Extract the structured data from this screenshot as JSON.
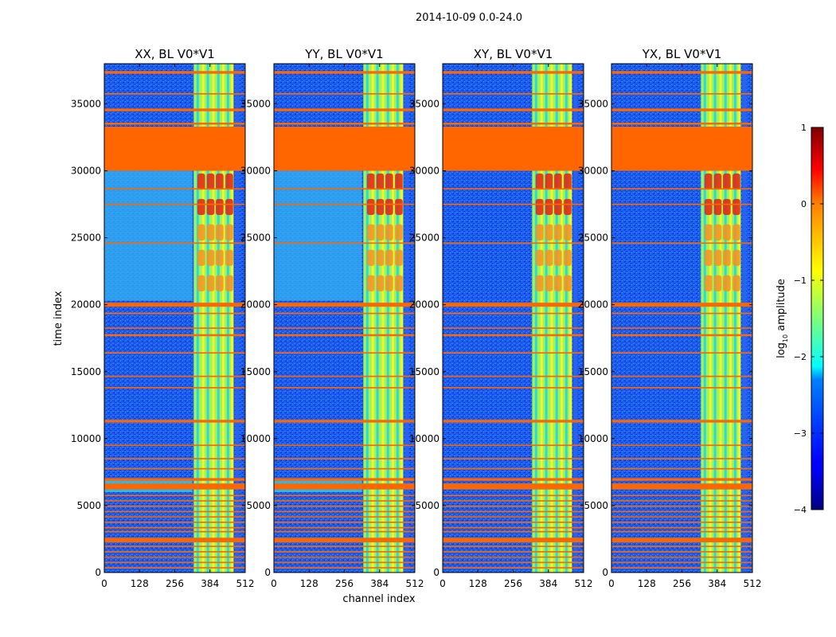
{
  "chart_data": {
    "type": "heatmap",
    "suptitle": "2014-10-09 0.0-24.0",
    "xlabel": "channel index",
    "ylabel": "time index",
    "xlim": [
      0,
      512
    ],
    "ylim": [
      0,
      38000
    ],
    "xticks": [
      0,
      128,
      256,
      384,
      512
    ],
    "xtick_labels": [
      "0",
      "128",
      "256",
      "384",
      "512"
    ],
    "yticks": [
      0,
      5000,
      10000,
      15000,
      20000,
      25000,
      30000,
      35000
    ],
    "ytick_labels": [
      "0",
      "5000",
      "10000",
      "15000",
      "20000",
      "25000",
      "30000",
      "35000"
    ],
    "panels": [
      {
        "title": "XX, BL V0*V1",
        "polarization": "XX"
      },
      {
        "title": "YY, BL V0*V1",
        "polarization": "YY"
      },
      {
        "title": "XY, BL V0*V1",
        "polarization": "XY"
      },
      {
        "title": "YX, BL V0*V1",
        "polarization": "YX"
      }
    ],
    "flagged_time_ranges": [
      [
        30000,
        33300
      ],
      [
        19850,
        20150
      ],
      [
        6200,
        6650
      ],
      [
        6850,
        7050
      ],
      [
        2250,
        2600
      ],
      [
        37250,
        37450
      ],
      [
        34450,
        34650
      ],
      [
        33450,
        33600
      ],
      [
        17650,
        17800
      ],
      [
        16350,
        16450
      ],
      [
        11200,
        11400
      ],
      [
        8450,
        8550
      ],
      [
        7700,
        7800
      ],
      [
        5700,
        5800
      ],
      [
        5300,
        5400
      ],
      [
        4900,
        5000
      ],
      [
        4500,
        4600
      ],
      [
        4100,
        4200
      ],
      [
        3700,
        3800
      ],
      [
        3300,
        3400
      ],
      [
        3000,
        3100
      ],
      [
        1900,
        2000
      ],
      [
        1500,
        1600
      ],
      [
        1100,
        1200
      ],
      [
        700,
        800
      ],
      [
        300,
        400
      ],
      [
        35700,
        35800
      ],
      [
        28600,
        28700
      ],
      [
        27450,
        27550
      ],
      [
        24550,
        24650
      ],
      [
        13750,
        13850
      ],
      [
        14600,
        14700
      ],
      [
        18200,
        18300
      ],
      [
        19300,
        19400
      ],
      [
        9450,
        9550
      ]
    ],
    "flag_color": "#ff6600",
    "colorbar": {
      "label_log": "log",
      "label_sub": "10",
      "label_rest": " amplitude",
      "range": [
        -4,
        1
      ],
      "ticks": [
        1,
        0,
        -1,
        -2,
        -3,
        -4
      ],
      "tick_labels": [
        "1",
        "0",
        "−1",
        "−2",
        "−3",
        "−4"
      ],
      "colormap": "jet"
    }
  }
}
